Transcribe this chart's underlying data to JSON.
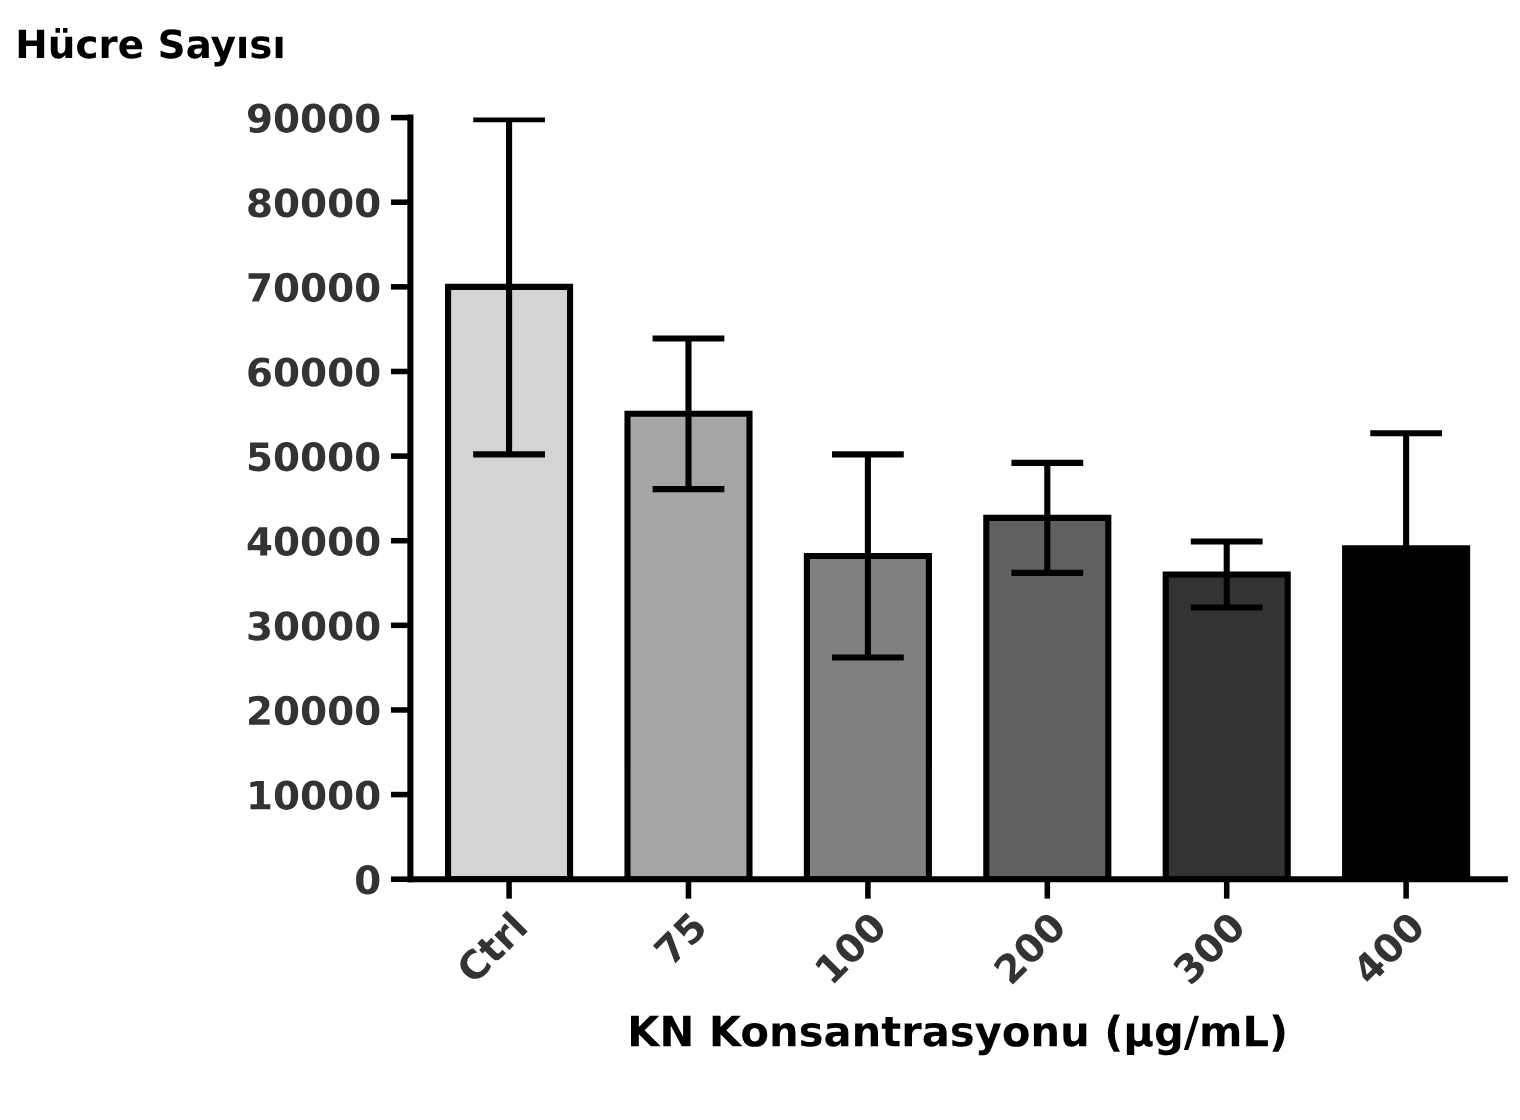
{
  "chart_data": {
    "type": "bar",
    "ylabel": "Hücre Sayısı",
    "xlabel": "KN Konsantrasyonu (µg/mL)",
    "categories": [
      "Ctrl",
      "75",
      "100",
      "200",
      "300",
      "400"
    ],
    "values": [
      70000,
      55000,
      38200,
      42700,
      36000,
      39100
    ],
    "colors": [
      "#d4d4d4",
      "#a6a6a6",
      "#808080",
      "#606060",
      "#333333",
      "#000000"
    ],
    "errors": [
      19800,
      8900,
      12000,
      6500,
      3900,
      13600
    ],
    "ylim": [
      0,
      90000
    ],
    "yticks": [
      0,
      10000,
      20000,
      30000,
      40000,
      50000,
      60000,
      70000,
      80000,
      90000
    ],
    "grid": false,
    "legend": false
  }
}
